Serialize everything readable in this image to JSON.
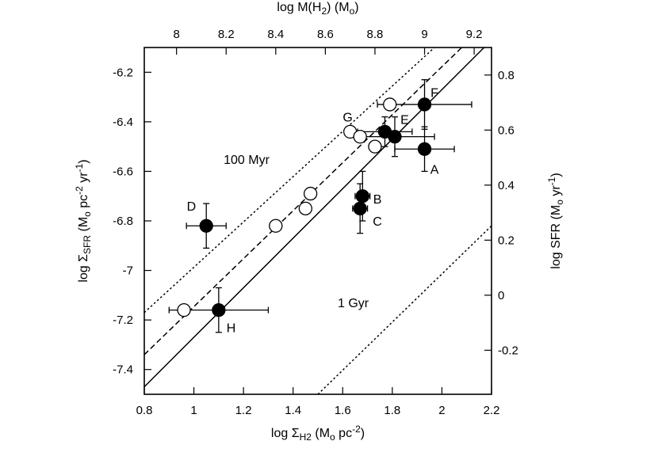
{
  "chart_data": {
    "type": "scatter",
    "title": "",
    "xlabel": {
      "pre": "log Σ",
      "sub": "H2",
      "mid": " (M",
      "sub2": "o",
      "mid2": " pc",
      "sup": "-2",
      "post": ")"
    },
    "ylabel": {
      "pre": "log Σ",
      "sub": "SFR",
      "mid": " (M",
      "sub2": "o",
      "mid2": " pc",
      "sup": "-2",
      "mid3": " yr",
      "sup2": "-1",
      "post": ")"
    },
    "x2label": {
      "pre": "log M(H",
      "sub": "2",
      "mid": ") (M",
      "sub2": "o",
      "post": ")"
    },
    "y2label": {
      "pre": "log SFR (M",
      "sub": "o",
      "mid": " yr",
      "sup": "-1",
      "post": ")"
    },
    "xlim": [
      0.8,
      2.2
    ],
    "ylim": [
      -7.5,
      -6.1
    ],
    "x2lim": [
      7.87,
      9.27
    ],
    "y2lim": [
      -0.36,
      0.9
    ],
    "xticks": [
      "0.8",
      "1",
      "1.2",
      "1.4",
      "1.6",
      "1.8",
      "2",
      "2.2"
    ],
    "yticks": [
      "-7.4",
      "-7.2",
      "-7",
      "-6.8",
      "-6.6",
      "-6.4",
      "-6.2"
    ],
    "x2ticks": [
      "8",
      "8.2",
      "8.4",
      "8.6",
      "8.8",
      "9",
      "9.2"
    ],
    "y2ticks": [
      "-0.2",
      "0",
      "0.2",
      "0.4",
      "0.6",
      "0.8"
    ],
    "series": [
      {
        "name": "filled",
        "marker": "filled-circle",
        "points": [
          {
            "x": 1.93,
            "y": -6.51,
            "xerr": 0.12,
            "yerr": 0.09,
            "label": "A"
          },
          {
            "x": 1.68,
            "y": -6.7,
            "xerr": 0.03,
            "yerr": 0.1,
            "label": "B"
          },
          {
            "x": 1.67,
            "y": -6.75,
            "xerr": 0.03,
            "yerr": 0.1,
            "label": "C"
          },
          {
            "x": 1.05,
            "y": -6.82,
            "xerr": 0.08,
            "yerr": 0.09,
            "label": "D"
          },
          {
            "x": 1.81,
            "y": -6.46,
            "xerr": 0.16,
            "yerr": 0.08,
            "label": "E"
          },
          {
            "x": 1.93,
            "y": -6.33,
            "xerr": 0.19,
            "yerr": 0.1,
            "label": "F"
          },
          {
            "x": 1.77,
            "y": -6.44,
            "xerr": 0.11,
            "yerr": 0.06,
            "label": "G"
          },
          {
            "x": 1.1,
            "y": -7.16,
            "xerr": 0.2,
            "yerr": 0.09,
            "label": "H"
          }
        ]
      },
      {
        "name": "open",
        "marker": "open-circle",
        "points": [
          {
            "x": 0.96,
            "y": -7.16
          },
          {
            "x": 1.33,
            "y": -6.82
          },
          {
            "x": 1.45,
            "y": -6.75
          },
          {
            "x": 1.47,
            "y": -6.69
          },
          {
            "x": 1.63,
            "y": -6.44
          },
          {
            "x": 1.67,
            "y": -6.46
          },
          {
            "x": 1.73,
            "y": -6.5
          },
          {
            "x": 1.79,
            "y": -6.33
          }
        ]
      }
    ],
    "lines": [
      {
        "name": "100 Myr",
        "style": "dotted",
        "from": [
          0.8,
          -7.17
        ],
        "to": [
          1.97,
          -6.1
        ]
      },
      {
        "name": "dashed",
        "style": "dashed",
        "from": [
          0.8,
          -7.34
        ],
        "to": [
          2.08,
          -6.1
        ]
      },
      {
        "name": "solid",
        "style": "solid",
        "from": [
          0.8,
          -7.47
        ],
        "to": [
          2.17,
          -6.1
        ]
      },
      {
        "name": "1 Gyr",
        "style": "dotted",
        "from": [
          1.5,
          -7.5
        ],
        "to": [
          2.2,
          -6.82
        ]
      }
    ],
    "annotations": [
      {
        "text": "100 Myr",
        "x": 1.12,
        "y": -6.55
      },
      {
        "text": "1 Gyr",
        "x": 1.58,
        "y": -7.13
      }
    ],
    "point_labels": [
      {
        "text": "A",
        "x": 1.97,
        "y": -6.59
      },
      {
        "text": "B",
        "x": 1.74,
        "y": -6.71
      },
      {
        "text": "C",
        "x": 1.74,
        "y": -6.8
      },
      {
        "text": "D",
        "x": 0.99,
        "y": -6.74
      },
      {
        "text": "E",
        "x": 1.85,
        "y": -6.39
      },
      {
        "text": "F",
        "x": 1.97,
        "y": -6.28
      },
      {
        "text": "G",
        "x": 1.62,
        "y": -6.38
      },
      {
        "text": "H",
        "x": 1.15,
        "y": -7.23
      }
    ]
  }
}
